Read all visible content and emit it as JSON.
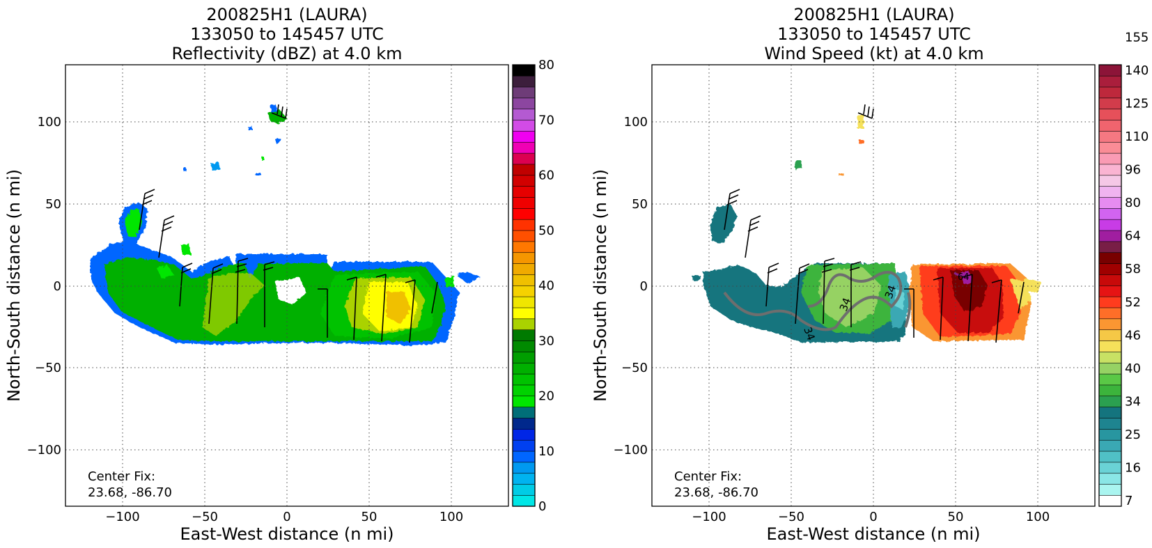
{
  "chart_data": [
    {
      "type": "heatmap",
      "title_lines": [
        "200825H1 (LAURA)",
        "133050 to 145457 UTC",
        "Reflectivity (dBZ) at 4.0 km"
      ],
      "xlabel": "East-West distance (n mi)",
      "ylabel": "North-South distance (n mi)",
      "xlim": [
        -135,
        135
      ],
      "ylim": [
        -135,
        135
      ],
      "xticks": [
        "−100",
        "−50",
        "0",
        "50",
        "100"
      ],
      "xtick_values": [
        -100,
        -50,
        0,
        50,
        100
      ],
      "yticks": [
        "100",
        "50",
        "0",
        "−50",
        "−100"
      ],
      "ytick_values": [
        100,
        50,
        0,
        -50,
        -100
      ],
      "grid": true,
      "annotation_lines": [
        "Center Fix:",
        "23.68, -86.70"
      ],
      "colorbar": {
        "vmin": 0,
        "vmax": 80,
        "colors": [
          "#00e6e6",
          "#00cce6",
          "#00b3f0",
          "#0099f0",
          "#0066ff",
          "#0040f0",
          "#0026e6",
          "#00288c",
          "#006e78",
          "#00e600",
          "#00d200",
          "#00c200",
          "#00b000",
          "#009e00",
          "#008a00",
          "#007a00",
          "#aad200",
          "#ffff00",
          "#f0e600",
          "#f5d200",
          "#f0c000",
          "#f0aa00",
          "#f59600",
          "#ff7800",
          "#ff5000",
          "#ff3200",
          "#ff0000",
          "#f00000",
          "#e60000",
          "#d20000",
          "#c00000",
          "#dc0050",
          "#f000b4",
          "#f000f0",
          "#d24be6",
          "#b45ad2",
          "#8c46a0",
          "#6e3c78",
          "#3c1e3c",
          "#000000"
        ],
        "ticks": [
          "0",
          "10",
          "20",
          "30",
          "40",
          "50",
          "60",
          "70",
          "80"
        ],
        "tick_values": [
          0,
          10,
          20,
          30,
          40,
          50,
          60,
          70,
          80
        ]
      }
    },
    {
      "type": "heatmap",
      "title_lines": [
        "200825H1 (LAURA)",
        "133050 to 145457 UTC",
        "Wind Speed (kt) at 4.0 km"
      ],
      "xlabel": "East-West distance (n mi)",
      "ylabel": "North-South distance (n mi)",
      "xlim": [
        -135,
        135
      ],
      "ylim": [
        -135,
        135
      ],
      "xticks": [
        "−100",
        "−50",
        "0",
        "50",
        "100"
      ],
      "xtick_values": [
        -100,
        -50,
        0,
        50,
        100
      ],
      "yticks": [
        "100",
        "50",
        "0",
        "−50",
        "−100"
      ],
      "ytick_values": [
        100,
        50,
        0,
        -50,
        -100
      ],
      "grid": true,
      "annotation_lines": [
        "Center Fix:",
        "23.68, -86.70"
      ],
      "contour_labels": [
        "34",
        "34",
        "34",
        "64"
      ],
      "colorbar": {
        "colors": [
          "#ffffff",
          "#aaf5f0",
          "#8ae6e6",
          "#6ad2d6",
          "#50c0c6",
          "#3aa8b4",
          "#2896a0",
          "#1e8490",
          "#14747e",
          "#2ba050",
          "#3cb43c",
          "#5ac846",
          "#96d264",
          "#c8e164",
          "#f5e15a",
          "#f5c846",
          "#fa9632",
          "#ff6e28",
          "#ff3c1e",
          "#e61414",
          "#c80a0a",
          "#a00000",
          "#780000",
          "#781e46",
          "#a01ea0",
          "#c83ce6",
          "#d264f0",
          "#e68cf0",
          "#f0b4f0",
          "#f5c8e6",
          "#fab4d2",
          "#fa9bb4",
          "#fa8c96",
          "#f57882",
          "#f0646e",
          "#e6505a",
          "#d23c4b",
          "#be283c",
          "#aa1e3c",
          "#8c1438"
        ],
        "ticks": [
          "7",
          "16",
          "25",
          "34",
          "40",
          "46",
          "52",
          "58",
          "64",
          "80",
          "96",
          "110",
          "125",
          "140",
          "155"
        ]
      }
    }
  ]
}
